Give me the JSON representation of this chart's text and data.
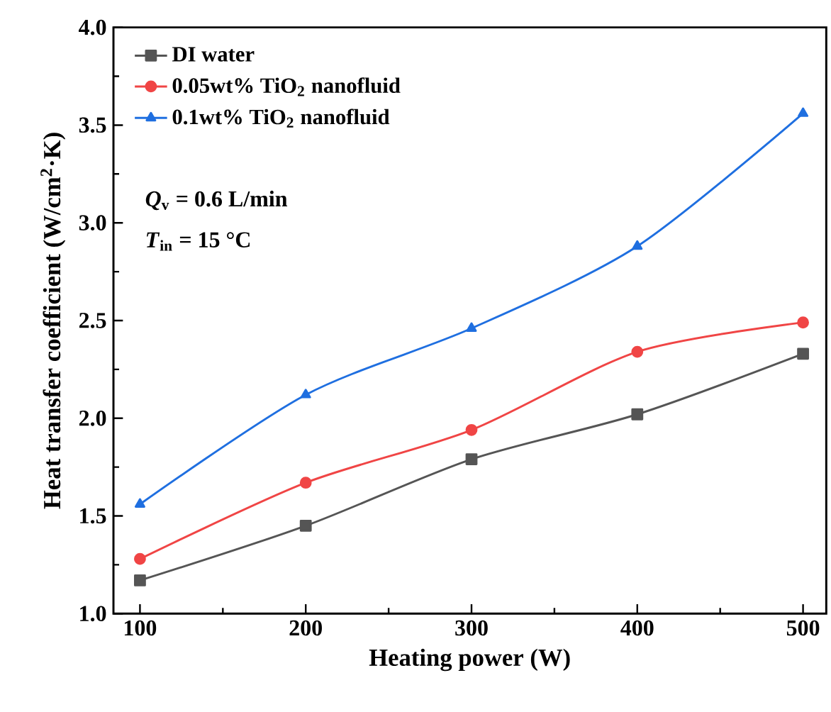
{
  "chart_data": {
    "type": "line",
    "xlabel": "Heating power (W)",
    "ylabel": "Heat transfer coefficient (W/cm$^{2}$·K)",
    "x": [
      100,
      200,
      300,
      400,
      500
    ],
    "series": [
      {
        "name": "DI water",
        "color": "#555555",
        "marker": "square",
        "values": [
          1.17,
          1.45,
          1.79,
          2.02,
          2.33
        ]
      },
      {
        "name": "0.05wt% TiO$_{2}$ nanofluid",
        "color": "#f04545",
        "marker": "circle",
        "values": [
          1.28,
          1.67,
          1.94,
          2.34,
          2.49
        ]
      },
      {
        "name": "0.1wt%  TiO$_{2}$ nanofluid",
        "color": "#1f6fe0",
        "marker": "triangle",
        "values": [
          1.56,
          2.12,
          2.46,
          2.88,
          3.56
        ]
      }
    ],
    "annotations": [
      "*Q*$_{v}$ = 0.6 L/min",
      "*T*$_{in}$ = 15 °C"
    ],
    "xlim": [
      84,
      514
    ],
    "xticks": [
      100,
      200,
      300,
      400,
      500
    ],
    "ylim": [
      1.0,
      4.0
    ],
    "yticks": [
      {
        "value": 1.0,
        "label": "1.0"
      },
      {
        "value": 1.5,
        "label": "1.5"
      },
      {
        "value": 2.0,
        "label": "2.0"
      },
      {
        "value": 2.5,
        "label": "2.5"
      },
      {
        "value": 3.0,
        "label": "3.0"
      },
      {
        "value": 3.5,
        "label": "3.5"
      },
      {
        "value": 4.0,
        "label": "4.0"
      }
    ],
    "grid": false,
    "legend": "top left",
    "line_style": "solid"
  }
}
